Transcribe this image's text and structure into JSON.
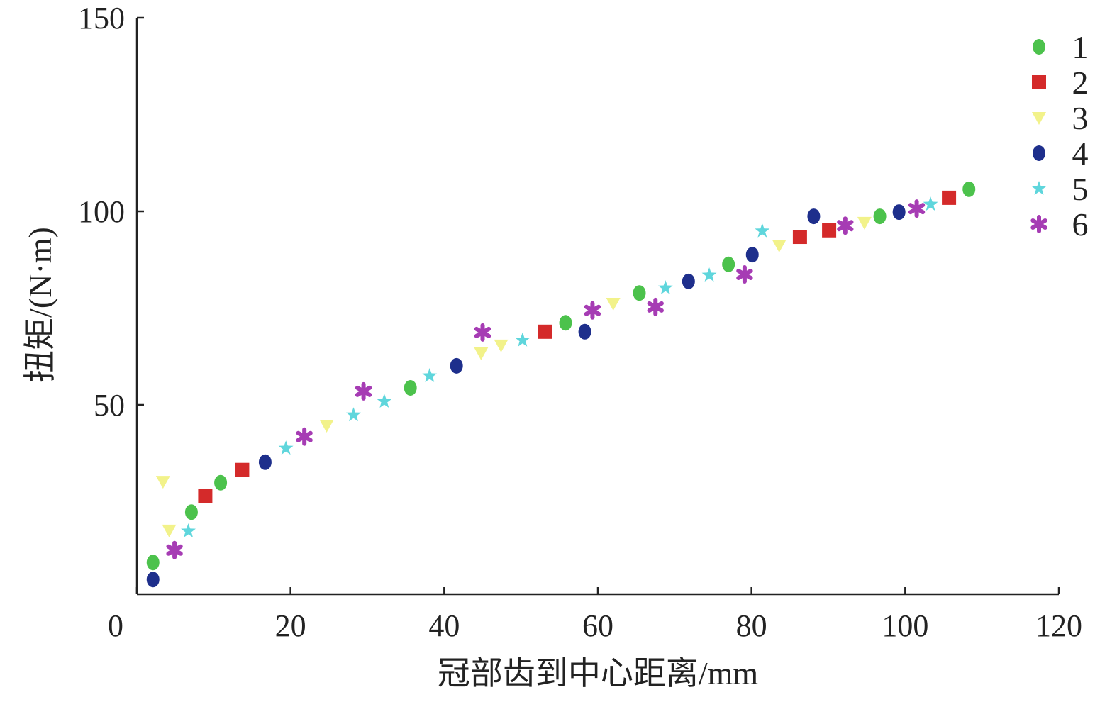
{
  "chart_data": {
    "type": "scatter",
    "title": "",
    "xlabel": "冠部齿到中心距离/mm",
    "ylabel": "扭矩/(N·m)",
    "xlim": [
      0,
      120
    ],
    "ylim": [
      0,
      150
    ],
    "xticks": [
      0,
      20,
      40,
      60,
      80,
      100,
      120
    ],
    "yticks": [
      50,
      100,
      150
    ],
    "grid": false,
    "legend_position": "top-right",
    "series": [
      {
        "name": "1",
        "color": "#4cc24c",
        "marker": "circle",
        "x": [
          2.1,
          7.1,
          10.9,
          35.6,
          55.8,
          65.4,
          77.0,
          96.7,
          108.3
        ],
        "y": [
          9.3,
          22.3,
          29.9,
          54.4,
          71.2,
          78.9,
          86.3,
          98.7,
          105.7
        ]
      },
      {
        "name": "2",
        "color": "#d42a2a",
        "marker": "square",
        "x": [
          8.9,
          13.7,
          53.1,
          86.3,
          90.1,
          105.7
        ],
        "y": [
          26.4,
          33.2,
          68.9,
          93.4,
          95.1,
          103.5
        ]
      },
      {
        "name": "3",
        "color": "#f2f28a",
        "marker": "triangle",
        "x": [
          3.4,
          4.2,
          24.7,
          44.8,
          47.4,
          62.0,
          83.6,
          94.7
        ],
        "y": [
          30.2,
          17.6,
          44.7,
          63.4,
          65.4,
          76.2,
          91.2,
          97.1
        ]
      },
      {
        "name": "4",
        "color": "#1e2f8c",
        "marker": "circle",
        "x": [
          2.1,
          16.7,
          41.6,
          58.3,
          71.8,
          80.1,
          88.1,
          99.2
        ],
        "y": [
          4.9,
          35.2,
          60.1,
          68.9,
          81.9,
          88.8,
          98.7,
          99.8
        ]
      },
      {
        "name": "5",
        "color": "#5fd6dc",
        "marker": "star",
        "x": [
          6.7,
          19.4,
          28.2,
          32.2,
          38.1,
          50.2,
          68.8,
          74.5,
          81.4,
          103.3
        ],
        "y": [
          17.4,
          38.8,
          47.4,
          50.9,
          57.5,
          66.7,
          80.2,
          83.5,
          94.9,
          101.8
        ]
      },
      {
        "name": "6",
        "color": "#a63cb4",
        "marker": "asterisk",
        "x": [
          4.9,
          21.8,
          29.5,
          45.0,
          59.3,
          67.5,
          79.1,
          92.2,
          101.5
        ],
        "y": [
          12.5,
          41.8,
          53.5,
          68.7,
          74.4,
          75.3,
          83.7,
          96.3,
          100.7
        ]
      }
    ]
  }
}
